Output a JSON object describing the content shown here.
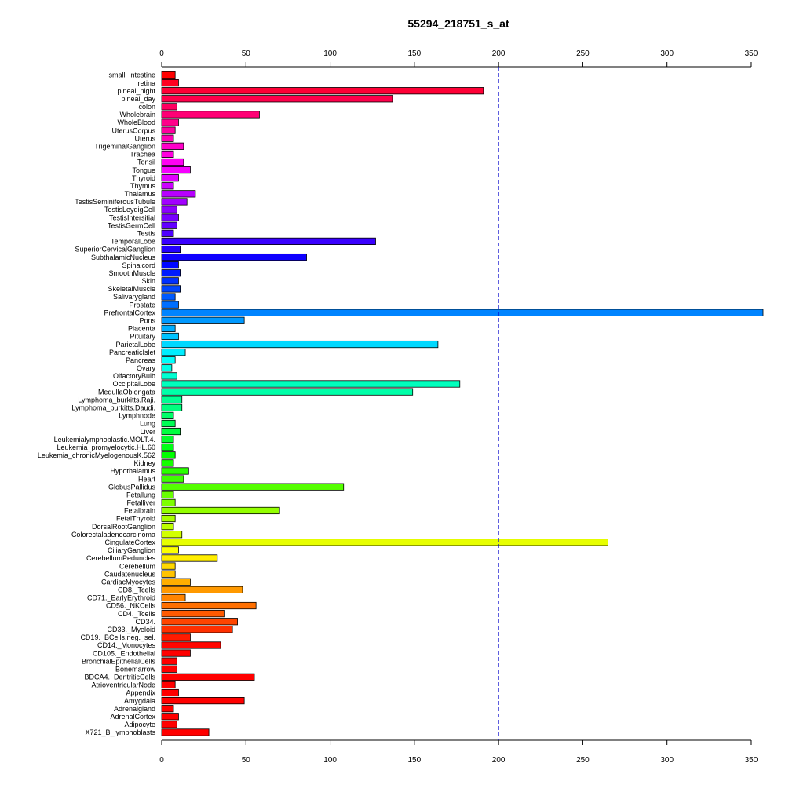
{
  "chart_data": {
    "type": "bar",
    "orientation": "horizontal",
    "title": "55294_218751_s_at",
    "xlabel": "",
    "ylabel": "",
    "xlim": [
      0,
      357
    ],
    "xticks": [
      0,
      50,
      100,
      150,
      200,
      250,
      300,
      350
    ],
    "reference_line": {
      "value": 200,
      "style": "dashed",
      "color": "#0000cc"
    },
    "grid": false,
    "legend": "none",
    "categories": [
      "small_intestine",
      "retina",
      "pineal_night",
      "pineal_day",
      "colon",
      "Wholebrain",
      "WholeBlood",
      "UterusCorpus",
      "Uterus",
      "TrigeminalGanglion",
      "Trachea",
      "Tonsil",
      "Tongue",
      "Thyroid",
      "Thymus",
      "Thalamus",
      "TestisSeminiferousTubule",
      "TestisLeydigCell",
      "TestisIntersitial",
      "TestisGermCell",
      "Testis",
      "TemporalLobe",
      "SuperiorCervicalGanglion",
      "SubthalamicNucleus",
      "Spinalcord",
      "SmoothMuscle",
      "Skin",
      "SkeletalMuscle",
      "Salivarygland",
      "Prostate",
      "PrefrontalCortex",
      "Pons",
      "Placenta",
      "Pituitary",
      "ParietalLobe",
      "PancreaticIslet",
      "Pancreas",
      "Ovary",
      "OlfactoryBulb",
      "OccipitalLobe",
      "MedullaOblongata",
      "Lymphoma_burkitts.Raji.",
      "Lymphoma_burkitts.Daudi.",
      "Lymphnode",
      "Lung",
      "Liver",
      "Leukemialymphoblastic.MOLT.4.",
      "Leukemia_promyelocytic.HL.60",
      "Leukemia_chronicMyelogenousK.562",
      "Kidney",
      "Hypothalamus",
      "Heart",
      "GlobusPallidus",
      "Fetallung",
      "Fetalliver",
      "Fetalbrain",
      "FetalThyroid",
      "DorsalRootGanglion",
      "Colorectaladenocarcinoma",
      "CingulateCortex",
      "CiliaryGanglion",
      "CerebellumPeduncles",
      "Cerebellum",
      "Caudatenucleus",
      "CardiacMyocytes",
      "CD8._Tcells",
      "CD71._EarlyErythroid",
      "CD56._NKCells",
      "CD4._Tcells",
      "CD34.",
      "CD33._Myeloid",
      "CD19._BCells.neg._sel.",
      "CD14._Monocytes",
      "CD105._Endothelial",
      "BronchialEpithelialCells",
      "Bonemarrow",
      "BDCA4._DentriticCells",
      "AtrioventricularNode",
      "Appendix",
      "Amygdala",
      "Adrenalgland",
      "AdrenalCortex",
      "Adipocyte",
      "X721_B_lymphoblasts"
    ],
    "values": [
      8,
      10,
      191,
      137,
      9,
      58,
      10,
      8,
      7,
      13,
      7,
      13,
      17,
      10,
      7,
      20,
      15,
      9,
      10,
      9,
      7,
      127,
      11,
      86,
      10,
      11,
      10,
      11,
      8,
      10,
      357,
      49,
      8,
      10,
      164,
      14,
      8,
      6,
      9,
      177,
      149,
      12,
      12,
      7,
      8,
      11,
      7,
      7,
      8,
      7,
      16,
      13,
      108,
      7,
      8,
      70,
      8,
      7,
      12,
      265,
      10,
      33,
      8,
      8,
      17,
      48,
      14,
      56,
      37,
      45,
      42,
      17,
      35,
      17,
      9,
      9,
      55,
      8,
      10,
      49,
      7,
      10,
      9,
      28
    ],
    "colors": [
      "#ff0000",
      "#ff0021",
      "#ff0036",
      "#ff004b",
      "#ff0060",
      "#ff0075",
      "#ff008a",
      "#ff009f",
      "#ff00b4",
      "#ff00c9",
      "#ff00de",
      "#ff00f3",
      "#f600ff",
      "#e100ff",
      "#cc00ff",
      "#b700ff",
      "#a200ff",
      "#8d00ff",
      "#7800ff",
      "#6300ff",
      "#4e00ff",
      "#3900ff",
      "#2400ff",
      "#0f00ff",
      "#0006ff",
      "#001bff",
      "#0030ff",
      "#0045ff",
      "#005aff",
      "#006fff",
      "#0084ff",
      "#0099ff",
      "#00aeff",
      "#00c3ff",
      "#00d8ff",
      "#00edff",
      "#00fffc",
      "#00ffe7",
      "#00ffd2",
      "#00ffbd",
      "#00ffa8",
      "#00ff93",
      "#00ff7e",
      "#00ff69",
      "#00ff54",
      "#00ff3f",
      "#00ff2a",
      "#00ff15",
      "#00ff00",
      "#15ff00",
      "#2aff00",
      "#3fff00",
      "#54ff00",
      "#69ff00",
      "#7eff00",
      "#93ff00",
      "#a8ff00",
      "#bdff00",
      "#d2ff00",
      "#e7ff00",
      "#fcff00",
      "#ffed00",
      "#ffd800",
      "#ffc300",
      "#ffae00",
      "#ff9900",
      "#ff8400",
      "#ff6f00",
      "#ff5a00",
      "#ff4500",
      "#ff3000",
      "#ff1b00",
      "#ff0600",
      "#ff0000",
      "#ff0000",
      "#ff0000",
      "#ff0000",
      "#ff0000",
      "#ff0000",
      "#ff0000",
      "#ff0000",
      "#ff0000",
      "#ff0000",
      "#ff0000"
    ]
  }
}
